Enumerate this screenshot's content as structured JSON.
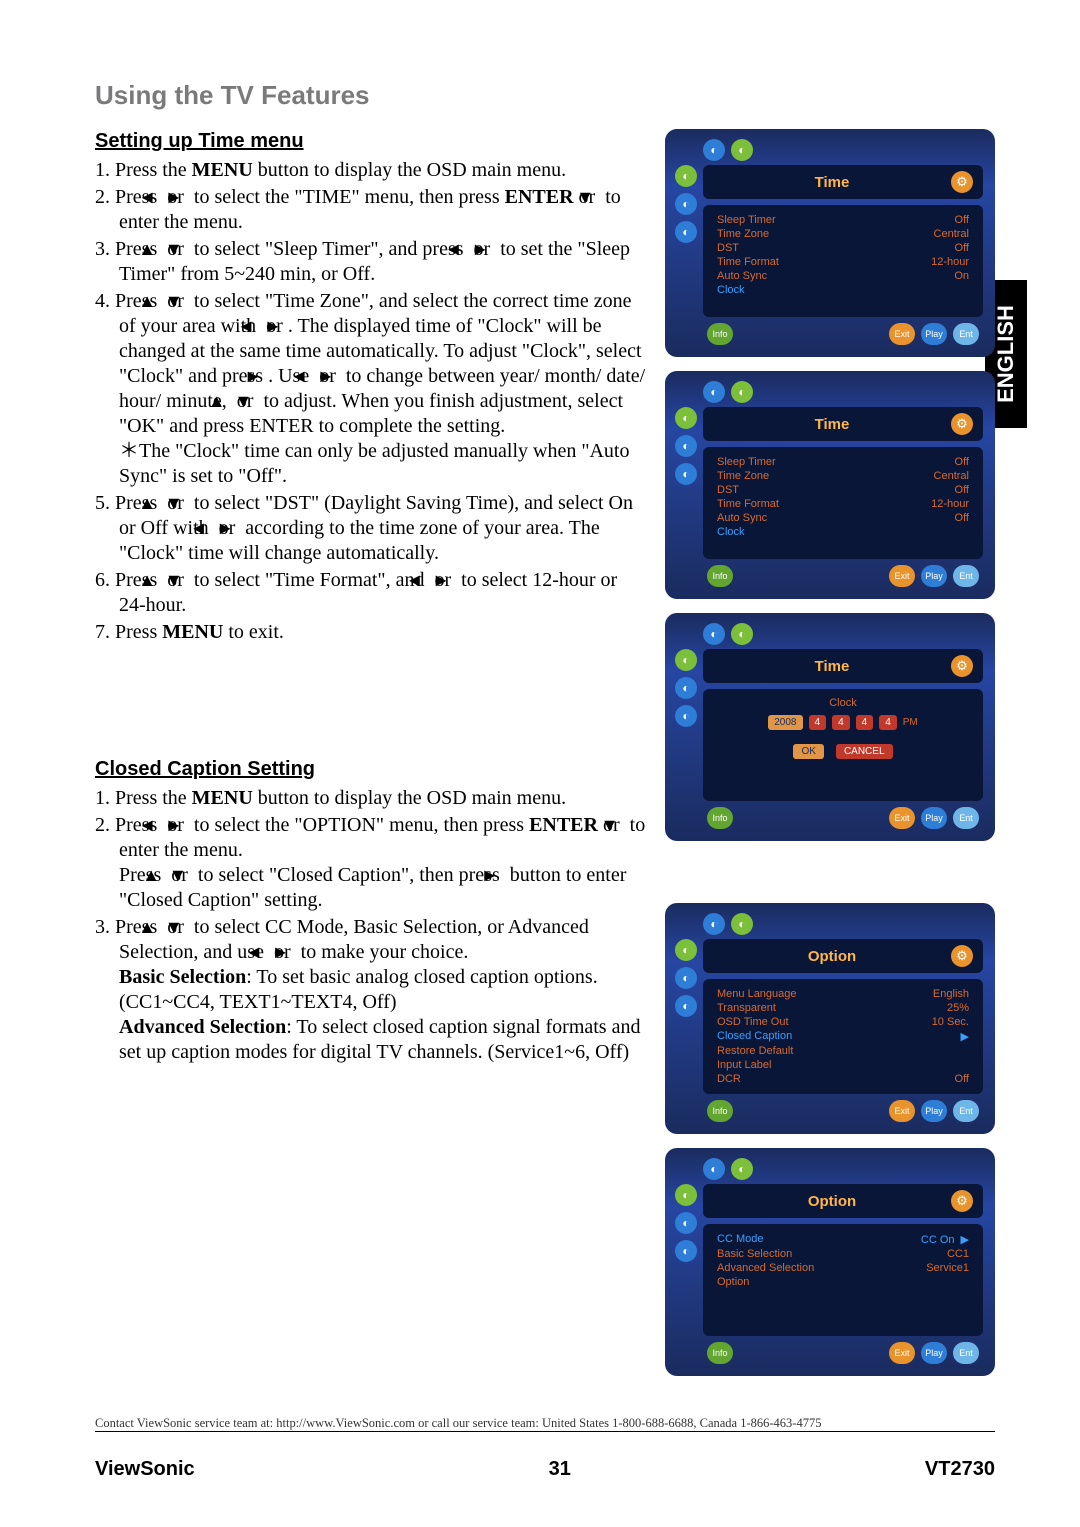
{
  "page_title": "Using the TV Features",
  "lang_tab": "ENGLISH",
  "section1": {
    "heading": "Setting up Time menu",
    "steps": [
      {
        "n": "1.",
        "frags": [
          {
            "t": "Press the "
          },
          {
            "t": "MENU",
            "b": 1
          },
          {
            "t": " button to display the OSD main menu."
          }
        ]
      },
      {
        "n": "2.",
        "frags": [
          {
            "t": "Press "
          },
          {
            "tri": "◄"
          },
          {
            "t": " or "
          },
          {
            "tri": "►"
          },
          {
            "t": " to select the \"TIME\" menu, then press "
          },
          {
            "t": "ENTER",
            "b": 1
          },
          {
            "t": " or "
          },
          {
            "tri": "▼"
          },
          {
            "t": " to enter the menu."
          }
        ]
      },
      {
        "n": "3.",
        "frags": [
          {
            "t": "Press "
          },
          {
            "tri": "▲"
          },
          {
            "t": " or "
          },
          {
            "tri": "▼"
          },
          {
            "t": " to select \"Sleep Timer\", and press "
          },
          {
            "tri": "◄"
          },
          {
            "t": " or "
          },
          {
            "tri": "►"
          },
          {
            "t": " to set the \"Sleep Timer\" from 5~240 min, or Off."
          }
        ]
      },
      {
        "n": "4.",
        "frags": [
          {
            "t": "Press "
          },
          {
            "tri": "▲"
          },
          {
            "t": " or "
          },
          {
            "tri": "▼"
          },
          {
            "t": " to select \"Time Zone\", and select the correct time zone of your area with "
          },
          {
            "tri": "◄"
          },
          {
            "t": " or "
          },
          {
            "tri": "►"
          },
          {
            "t": ". The displayed time of \"Clock\" will be changed at the same time automatically. To adjust \"Clock\", select \"Clock\" and press "
          },
          {
            "tri": "►"
          },
          {
            "t": ". Use "
          },
          {
            "tri": "◄"
          },
          {
            "t": " or "
          },
          {
            "tri": "►"
          },
          {
            "t": " to change between year/ month/ date/ hour/ minute, "
          },
          {
            "tri": "▲"
          },
          {
            "t": " or "
          },
          {
            "tri": "▼"
          },
          {
            "t": " to adjust. When you finish adjustment, select \"OK\" and press ENTER to complete the setting."
          },
          {
            "br": 1
          },
          {
            "t": "＊The \"Clock\" time can only be adjusted manually when \"Auto Sync\" is set to \"Off\"."
          }
        ]
      },
      {
        "n": "5.",
        "frags": [
          {
            "t": "Press "
          },
          {
            "tri": "▲"
          },
          {
            "t": " or "
          },
          {
            "tri": "▼"
          },
          {
            "t": " to select \"DST\" (Daylight Saving Time), and select On or Off with "
          },
          {
            "tri": "◄"
          },
          {
            "t": " or "
          },
          {
            "tri": "►"
          },
          {
            "t": " according to the time zone of your area. The \"Clock\" time will change automatically."
          }
        ]
      },
      {
        "n": "6.",
        "frags": [
          {
            "t": "Press "
          },
          {
            "tri": "▲"
          },
          {
            "t": " or "
          },
          {
            "tri": "▼"
          },
          {
            "t": " to select \"Time Format\", and "
          },
          {
            "tri": "◄"
          },
          {
            "t": " or "
          },
          {
            "tri": "►"
          },
          {
            "t": " to select 12-hour or 24-hour."
          }
        ]
      },
      {
        "n": "7.",
        "frags": [
          {
            "t": "Press "
          },
          {
            "t": "MENU",
            "b": 1
          },
          {
            "t": " to exit."
          }
        ]
      }
    ]
  },
  "section2": {
    "heading": "Closed Caption Setting",
    "steps": [
      {
        "n": "1.",
        "frags": [
          {
            "t": "Press the "
          },
          {
            "t": "MENU",
            "b": 1
          },
          {
            "t": " button to display the OSD main menu."
          }
        ]
      },
      {
        "n": "2.",
        "frags": [
          {
            "t": "Press "
          },
          {
            "tri": "◄"
          },
          {
            "t": " or "
          },
          {
            "tri": "►"
          },
          {
            "t": " to select the \"OPTION\" menu, then press "
          },
          {
            "t": "ENTER",
            "b": 1
          },
          {
            "t": " or "
          },
          {
            "tri": "▼"
          },
          {
            "t": " to enter the menu."
          },
          {
            "br": 1
          },
          {
            "t": "Press "
          },
          {
            "tri": "▲"
          },
          {
            "t": " or "
          },
          {
            "tri": "▼"
          },
          {
            "t": " to select \"Closed Caption\", then press "
          },
          {
            "tri": "►"
          },
          {
            "t": " button to enter \"Closed Caption\" setting."
          }
        ]
      },
      {
        "n": "3.",
        "frags": [
          {
            "t": "Press "
          },
          {
            "tri": "▲"
          },
          {
            "t": " or "
          },
          {
            "tri": "▼"
          },
          {
            "t": " to select CC Mode, Basic Selection, or Advanced Selection, and use "
          },
          {
            "tri": "◄"
          },
          {
            "t": " or "
          },
          {
            "tri": "►"
          },
          {
            "t": " to make your choice."
          },
          {
            "br": 1
          },
          {
            "t": "Basic Selection",
            "b": 1
          },
          {
            "t": ": To set basic analog closed caption options. (CC1~CC4, TEXT1~TEXT4, Off)"
          },
          {
            "br": 1
          },
          {
            "t": "Advanced Selection",
            "b": 1
          },
          {
            "t": ": To select closed caption signal formats and set up caption modes for digital TV channels. (Service1~6, Off)"
          }
        ]
      }
    ]
  },
  "osd": {
    "bottom": {
      "left": "Info",
      "right": [
        "Exit",
        "Play",
        "Ent"
      ]
    },
    "time1": {
      "title": "Time",
      "rows": [
        {
          "lbl": "Sleep Timer",
          "val": "Off"
        },
        {
          "lbl": "Time Zone",
          "val": "Central"
        },
        {
          "lbl": "DST",
          "val": "Off"
        },
        {
          "lbl": "Time Format",
          "val": "12-hour"
        },
        {
          "lbl": "Auto Sync",
          "val": "On"
        },
        {
          "lbl": "Clock",
          "val": "",
          "hl": 1
        }
      ]
    },
    "time2": {
      "title": "Time",
      "rows": [
        {
          "lbl": "Sleep Timer",
          "val": "Off"
        },
        {
          "lbl": "Time Zone",
          "val": "Central"
        },
        {
          "lbl": "DST",
          "val": "Off"
        },
        {
          "lbl": "Time Format",
          "val": "12-hour"
        },
        {
          "lbl": "Auto Sync",
          "val": "Off"
        },
        {
          "lbl": "Clock",
          "val": "",
          "hl": 1
        }
      ]
    },
    "time3": {
      "title": "Time",
      "clock": {
        "label": "Clock",
        "segs": [
          {
            "t": "2008",
            "hl": 1
          },
          {
            "t": "4"
          },
          {
            "t": "4"
          },
          {
            "t": "4"
          },
          {
            "t": "4"
          },
          {
            "t": "PM",
            "sm": 1
          }
        ],
        "btns": [
          {
            "t": "OK",
            "hl": 1
          },
          {
            "t": "CANCEL"
          }
        ]
      }
    },
    "opt1": {
      "title": "Option",
      "rows": [
        {
          "lbl": "Menu Language",
          "val": "English"
        },
        {
          "lbl": "Transparent",
          "val": "25%"
        },
        {
          "lbl": "OSD Time Out",
          "val": "10 Sec."
        },
        {
          "lbl": "Closed Caption",
          "val": "",
          "hl": 1,
          "arrow": 1
        },
        {
          "lbl": "Restore Default",
          "val": ""
        },
        {
          "lbl": "Input Label",
          "val": ""
        },
        {
          "lbl": "DCR",
          "val": "Off"
        }
      ]
    },
    "opt2": {
      "title": "Option",
      "rows": [
        {
          "lbl": "CC Mode",
          "val": "CC On",
          "hl": 1,
          "arrow": 1
        },
        {
          "lbl": "Basic Selection",
          "val": "CC1"
        },
        {
          "lbl": "Advanced Selection",
          "val": "Service1"
        },
        {
          "lbl": "Option",
          "val": ""
        }
      ]
    }
  },
  "footer": {
    "contact": "Contact ViewSonic service team at: http://www.ViewSonic.com or call our service team: United States 1-800-688-6688, Canada 1-866-463-4775",
    "brand": "ViewSonic",
    "page": "31",
    "model": "VT2730"
  }
}
